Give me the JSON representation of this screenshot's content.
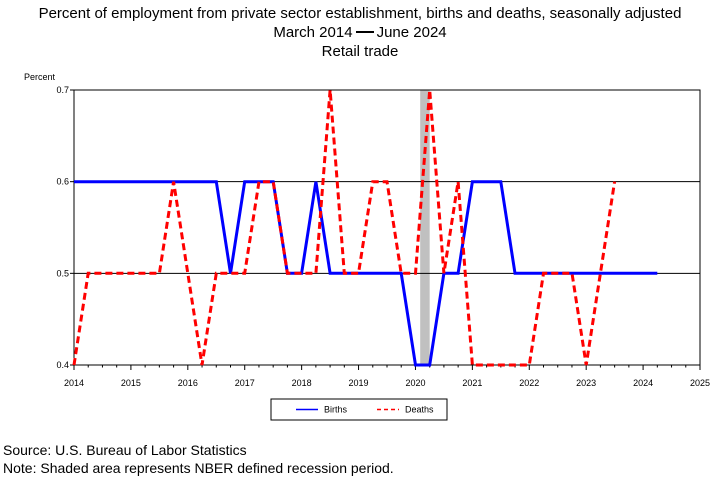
{
  "title": {
    "line1": "Percent of employment from private sector establishment, births and deaths, seasonally adjusted",
    "line2_start": "March 2014",
    "line2_end": "June 2024",
    "line3": "Retail trade"
  },
  "footer": {
    "source": "Source: U.S. Bureau of Labor Statistics",
    "note": "Note: Shaded area represents NBER defined recession period."
  },
  "colors": {
    "births": "#0000ff",
    "deaths": "#ff0000",
    "recession": "#c0c0c0"
  },
  "chart_data": {
    "type": "line",
    "ylabel": "Percent",
    "xlabel": "",
    "xlim": [
      2014,
      2025
    ],
    "ylim": [
      0.4,
      0.7
    ],
    "x_ticks": [
      "2014",
      "2015",
      "2016",
      "2017",
      "2018",
      "2019",
      "2020",
      "2021",
      "2022",
      "2023",
      "2024",
      "2025"
    ],
    "y_ticks": [
      "0.4",
      "0.5",
      "0.6",
      "0.7"
    ],
    "gridlines": "horizontal",
    "legend_position": "bottom-center",
    "recession_period": [
      "2020-02",
      "2020-04"
    ],
    "series": [
      {
        "name": "Births",
        "style": "solid",
        "points": [
          [
            2014.0,
            0.6
          ],
          [
            2016.5,
            0.6
          ],
          [
            2016.75,
            0.5
          ],
          [
            2017.0,
            0.6
          ],
          [
            2017.5,
            0.6
          ],
          [
            2017.75,
            0.5
          ],
          [
            2018.0,
            0.5
          ],
          [
            2018.25,
            0.6
          ],
          [
            2018.5,
            0.5
          ],
          [
            2019.75,
            0.5
          ],
          [
            2020.0,
            0.4
          ],
          [
            2020.25,
            0.4
          ],
          [
            2020.5,
            0.5
          ],
          [
            2020.75,
            0.5
          ],
          [
            2021.0,
            0.6
          ],
          [
            2021.5,
            0.6
          ],
          [
            2021.75,
            0.5
          ],
          [
            2024.25,
            0.5
          ]
        ]
      },
      {
        "name": "Deaths",
        "style": "dashed",
        "points": [
          [
            2014.0,
            0.4
          ],
          [
            2014.25,
            0.5
          ],
          [
            2015.5,
            0.5
          ],
          [
            2015.75,
            0.6
          ],
          [
            2016.0,
            0.5
          ],
          [
            2016.25,
            0.4
          ],
          [
            2016.5,
            0.5
          ],
          [
            2017.0,
            0.5
          ],
          [
            2017.25,
            0.6
          ],
          [
            2017.5,
            0.6
          ],
          [
            2017.75,
            0.5
          ],
          [
            2018.25,
            0.5
          ],
          [
            2018.5,
            0.7
          ],
          [
            2018.75,
            0.5
          ],
          [
            2019.0,
            0.5
          ],
          [
            2019.25,
            0.6
          ],
          [
            2019.5,
            0.6
          ],
          [
            2019.75,
            0.5
          ],
          [
            2020.0,
            0.5
          ],
          [
            2020.25,
            0.7
          ],
          [
            2020.5,
            0.5
          ],
          [
            2020.75,
            0.6
          ],
          [
            2021.0,
            0.4
          ],
          [
            2022.0,
            0.4
          ],
          [
            2022.25,
            0.5
          ],
          [
            2022.75,
            0.5
          ],
          [
            2023.0,
            0.4
          ],
          [
            2023.5,
            0.6
          ]
        ]
      }
    ]
  }
}
